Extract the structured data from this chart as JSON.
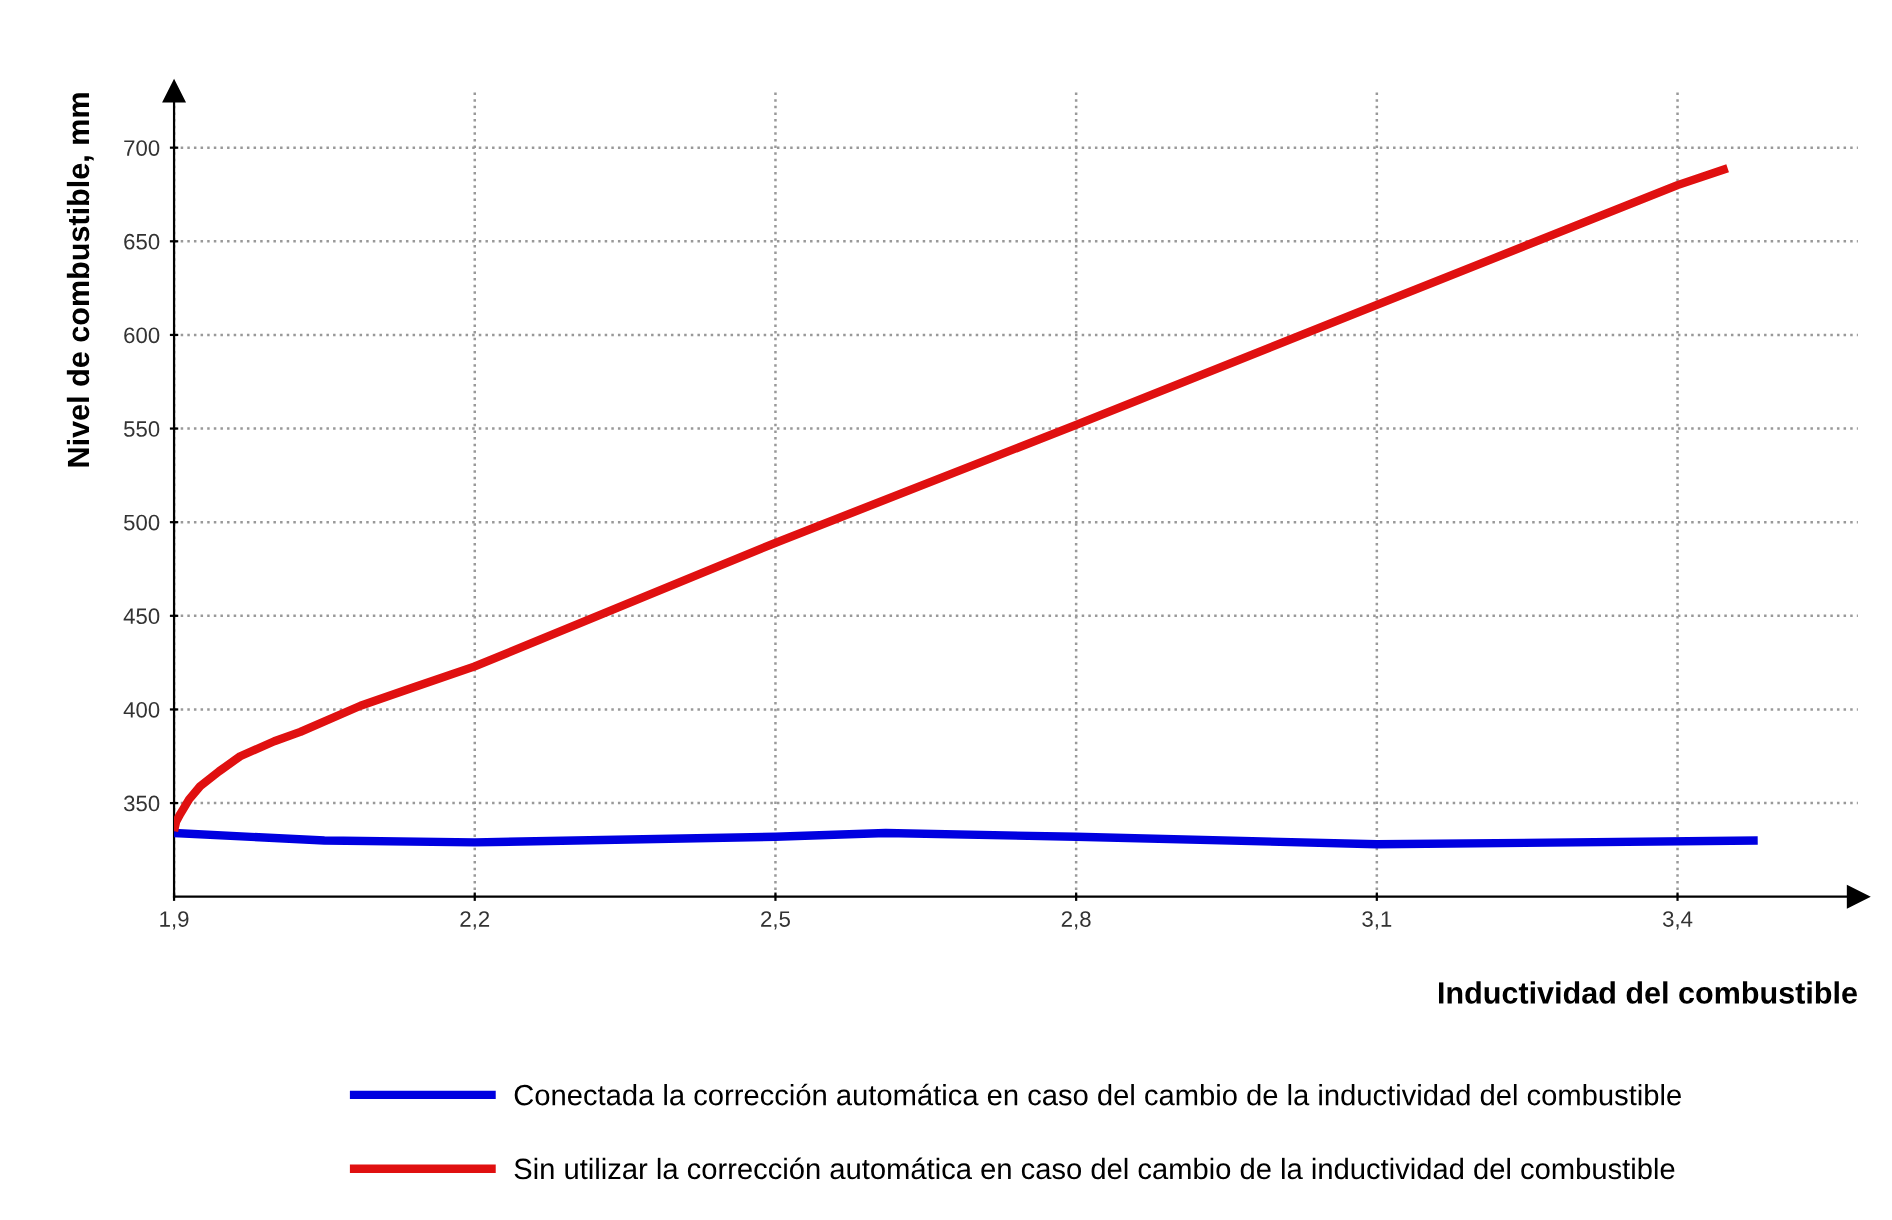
{
  "chart_data": {
    "type": "line",
    "xlabel": "Inductividad del combustible",
    "ylabel": "Nivel de combustible, mm",
    "xlim": [
      1.9,
      3.58
    ],
    "ylim": [
      300,
      730
    ],
    "xticks": [
      {
        "value": 1.9,
        "label": "1,9"
      },
      {
        "value": 2.2,
        "label": "2,2"
      },
      {
        "value": 2.5,
        "label": "2,5"
      },
      {
        "value": 2.8,
        "label": "2,8"
      },
      {
        "value": 3.1,
        "label": "3,1"
      },
      {
        "value": 3.4,
        "label": "3,4"
      }
    ],
    "yticks": [
      350,
      400,
      450,
      500,
      550,
      600,
      650,
      700
    ],
    "grid": true,
    "line_style": "solid",
    "marker": "none",
    "legend": "bottom",
    "series": [
      {
        "name": "Conectada la corrección automática en caso del cambio de la inductividad del combustible",
        "color": "#0000e0",
        "x": [
          1.9,
          2.05,
          2.2,
          2.5,
          2.61,
          2.8,
          3.1,
          3.48
        ],
        "values": [
          334,
          330,
          329,
          332,
          334,
          332,
          328,
          330
        ]
      },
      {
        "name": "Sin utilizar la corrección automática en caso del cambio de la inductividad del combustible",
        "color": "#e01010",
        "x": [
          1.9,
          1.902,
          1.906,
          1.915,
          1.926,
          1.945,
          1.966,
          2.0,
          2.026,
          2.086,
          2.14,
          2.2,
          2.5,
          2.8,
          3.1,
          3.4,
          3.45
        ],
        "values": [
          335,
          340,
          344,
          352,
          359,
          367,
          375,
          383,
          388,
          402,
          412,
          423,
          489,
          552,
          616,
          680,
          689
        ]
      }
    ]
  }
}
